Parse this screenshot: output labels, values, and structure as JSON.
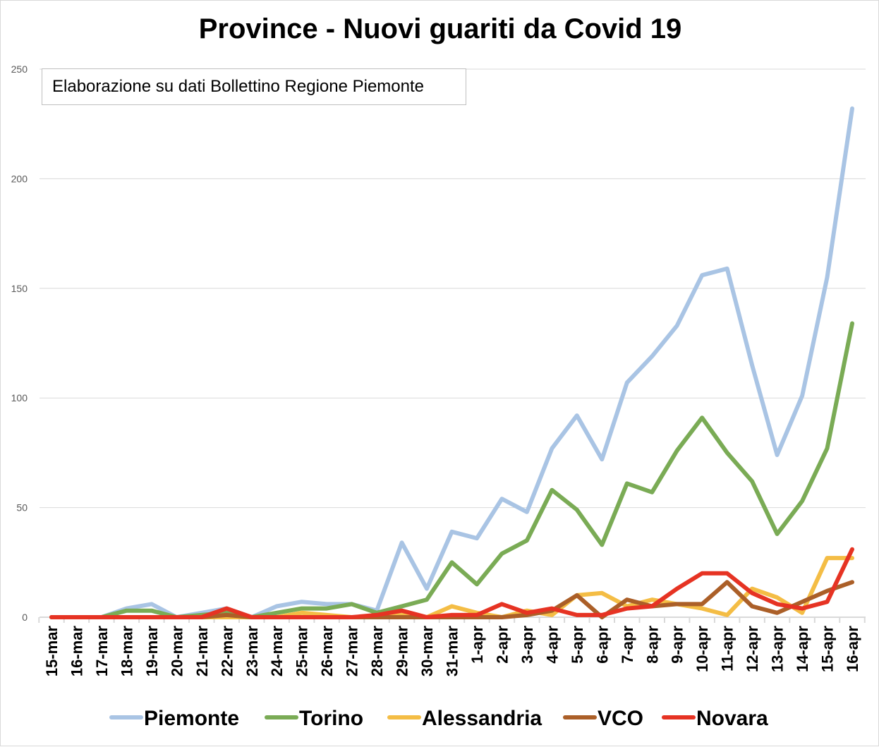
{
  "chart_data": {
    "type": "line",
    "title": "Province - Nuovi guariti da Covid 19",
    "annotation": "Elaborazione su dati Bollettino Regione Piemonte",
    "xlabel": "",
    "ylabel": "",
    "ylim": [
      0,
      250
    ],
    "yticks": [
      0,
      50,
      100,
      150,
      200,
      250
    ],
    "grid": true,
    "legend": "bottom",
    "categories": [
      "15-mar",
      "16-mar",
      "17-mar",
      "18-mar",
      "19-mar",
      "20-mar",
      "21-mar",
      "22-mar",
      "23-mar",
      "24-mar",
      "25-mar",
      "26-mar",
      "27-mar",
      "28-mar",
      "29-mar",
      "30-mar",
      "31-mar",
      "1-apr",
      "2-apr",
      "3-apr",
      "4-apr",
      "5-apr",
      "6-apr",
      "7-apr",
      "8-apr",
      "9-apr",
      "10-apr",
      "11-apr",
      "12-apr",
      "13-apr",
      "14-apr",
      "15-apr",
      "16-apr"
    ],
    "series": [
      {
        "name": "Piemonte",
        "color": "#a9c4e4",
        "values": [
          0,
          0,
          0,
          4,
          6,
          0,
          2,
          4,
          0,
          5,
          7,
          6,
          6,
          3,
          34,
          13,
          39,
          36,
          54,
          48,
          77,
          92,
          72,
          107,
          119,
          133,
          156,
          159,
          115,
          74,
          101,
          155,
          232
        ]
      },
      {
        "name": "Torino",
        "color": "#7aab55",
        "values": [
          0,
          0,
          0,
          3,
          3,
          0,
          1,
          2,
          0,
          2,
          4,
          4,
          6,
          2,
          5,
          8,
          25,
          15,
          29,
          35,
          58,
          49,
          33,
          61,
          57,
          76,
          91,
          75,
          62,
          38,
          53,
          77,
          134
        ]
      },
      {
        "name": "Alessandria",
        "color": "#f4bd45",
        "values": [
          0,
          0,
          0,
          0,
          0,
          0,
          0,
          0,
          0,
          0,
          2,
          1,
          0,
          0,
          1,
          0,
          5,
          2,
          0,
          3,
          1,
          10,
          11,
          5,
          8,
          6,
          4,
          1,
          13,
          9,
          2,
          27,
          27
        ]
      },
      {
        "name": "VCO",
        "color": "#ab5f28",
        "values": [
          0,
          0,
          0,
          0,
          0,
          0,
          0,
          1,
          0,
          0,
          0,
          0,
          0,
          0,
          0,
          0,
          0,
          0,
          0,
          1,
          3,
          10,
          0,
          8,
          5,
          6,
          6,
          16,
          5,
          2,
          7,
          12,
          16
        ]
      },
      {
        "name": "Novara",
        "color": "#e63323",
        "values": [
          0,
          0,
          0,
          0,
          0,
          0,
          0,
          4,
          0,
          0,
          0,
          0,
          0,
          1,
          3,
          0,
          1,
          1,
          6,
          2,
          4,
          1,
          1,
          4,
          5,
          13,
          20,
          20,
          11,
          6,
          4,
          7,
          31
        ]
      }
    ]
  }
}
